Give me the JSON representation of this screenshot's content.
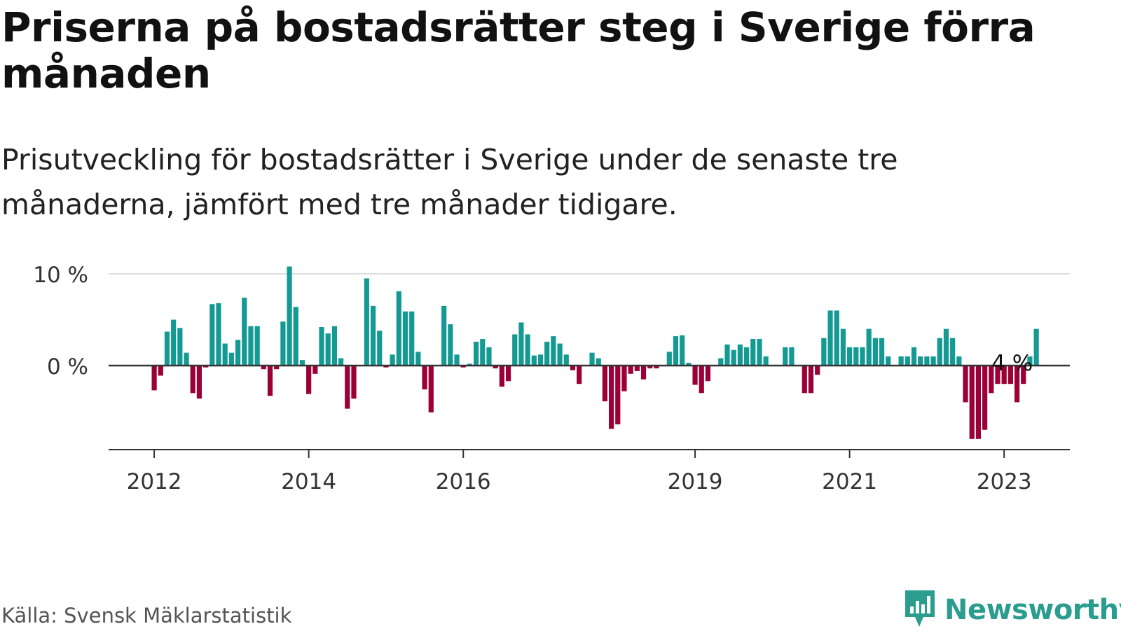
{
  "title": "Priserna på bostadsrätter steg i Sverige förra månaden",
  "subtitle": "Prisutveckling för bostadsrätter i Sverige under de senaste tre månaderna, jämfört med tre månader tidigare.",
  "source": "Källa: Svensk Mäklarstatistik",
  "logo_text": "Newsworthy",
  "icon": "newsworthy-chart-icon",
  "colors": {
    "positive": "#149a93",
    "negative": "#9b0037",
    "axis": "#333333",
    "grid": "#dddddd",
    "logo": "#2a9d8f"
  },
  "chart_data": {
    "type": "bar",
    "title": "",
    "xlabel": "",
    "ylabel": "",
    "start": "2012-01",
    "ylim": [
      -9,
      10
    ],
    "yticks": [
      0,
      10
    ],
    "ytick_labels": [
      "0 %",
      "10 %"
    ],
    "xticks": [
      {
        "label": "2012",
        "index": 0
      },
      {
        "label": "2014",
        "index": 24
      },
      {
        "label": "2016",
        "index": 48
      },
      {
        "label": "2019",
        "index": 84
      },
      {
        "label": "2021",
        "index": 108
      },
      {
        "label": "2023",
        "index": 132
      }
    ],
    "annotation": {
      "label": "4 %",
      "index": 135
    },
    "grid": "horizontal",
    "values": [
      -2.7,
      -1.1,
      3.7,
      5.0,
      4.1,
      1.4,
      -3.0,
      -3.6,
      -0.2,
      6.7,
      6.8,
      2.4,
      1.4,
      2.8,
      7.4,
      4.3,
      4.3,
      -0.4,
      -3.3,
      -0.4,
      4.8,
      10.8,
      6.4,
      0.6,
      -3.1,
      -0.9,
      4.2,
      3.5,
      4.3,
      0.8,
      -4.7,
      -3.6,
      0.0,
      9.5,
      6.5,
      3.8,
      -0.2,
      1.2,
      8.1,
      5.9,
      5.9,
      1.5,
      -2.6,
      -5.1,
      0.0,
      6.5,
      4.5,
      1.2,
      -0.2,
      0.2,
      2.6,
      2.9,
      2.0,
      -0.3,
      -2.3,
      -1.7,
      3.4,
      4.7,
      3.4,
      1.1,
      1.2,
      2.6,
      3.2,
      2.4,
      1.2,
      -0.5,
      -2.0,
      0.0,
      1.4,
      0.8,
      -3.9,
      -6.9,
      -6.4,
      -2.8,
      -0.9,
      -0.6,
      -1.5,
      -0.3,
      -0.3,
      0.0,
      1.5,
      3.2,
      3.3,
      0.3,
      -2.1,
      -3.0,
      -1.7,
      0.0,
      0.8,
      2.3,
      1.7,
      2.3,
      2.0,
      2.9,
      2.9,
      1.0,
      0.0,
      0.0,
      2.0,
      2.0,
      0.0,
      -3.0,
      -3.0,
      -1.0,
      3.0,
      6.0,
      6.0,
      4.0,
      2.0,
      2.0,
      2.0,
      4.0,
      3.0,
      3.0,
      1.0,
      0.0,
      1.0,
      1.0,
      2.0,
      1.0,
      1.0,
      1.0,
      3.0,
      4.0,
      3.0,
      1.0,
      -4.0,
      -8.0,
      -8.0,
      -7.0,
      -3.0,
      -2.0,
      -2.0,
      -2.0,
      -4.0,
      -2.0,
      1.0,
      4.0
    ]
  }
}
